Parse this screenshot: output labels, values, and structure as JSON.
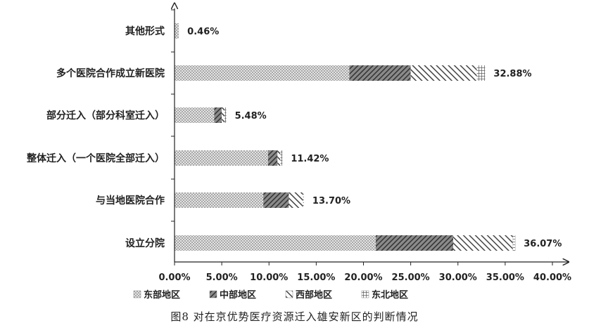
{
  "caption": "图8   对在京优势医疗资源迁入雄安新区的判断情况",
  "colors": {
    "east": "#bdbdbd",
    "central": "#555555",
    "west": "#6a6a6a",
    "northeast": "#9a9a9a",
    "axis": "#222222"
  },
  "chart_data": {
    "type": "bar",
    "orientation": "horizontal",
    "stacked": true,
    "categories": [
      "其他形式",
      "多个医院合作成立新医院",
      "部分迁入（部分科室迁入）",
      "整体迁入（一个医院全部迁入）",
      "与当地医院合作",
      "设立分院"
    ],
    "series": [
      {
        "name": "东部地区",
        "values": [
          0.46,
          18.5,
          4.2,
          9.9,
          9.4,
          21.3
        ]
      },
      {
        "name": "中部地区",
        "values": [
          0.0,
          6.5,
          0.8,
          1.0,
          2.7,
          8.2
        ]
      },
      {
        "name": "西部地区",
        "values": [
          0.0,
          7.0,
          0.3,
          0.3,
          1.5,
          6.3
        ]
      },
      {
        "name": "东北地区",
        "values": [
          0.0,
          0.88,
          0.18,
          0.22,
          0.1,
          0.27
        ]
      }
    ],
    "totals": [
      "0.46%",
      "32.88%",
      "5.48%",
      "11.42%",
      "13.70%",
      "36.07%"
    ],
    "xticks": [
      "0.00%",
      "5.00%",
      "10.00%",
      "15.00%",
      "20.00%",
      "25.00%",
      "30.00%",
      "35.00%",
      "40.00%"
    ],
    "xlim": [
      0,
      40
    ],
    "grid": false,
    "legend_position": "bottom",
    "title": "",
    "xlabel": "",
    "ylabel": ""
  }
}
